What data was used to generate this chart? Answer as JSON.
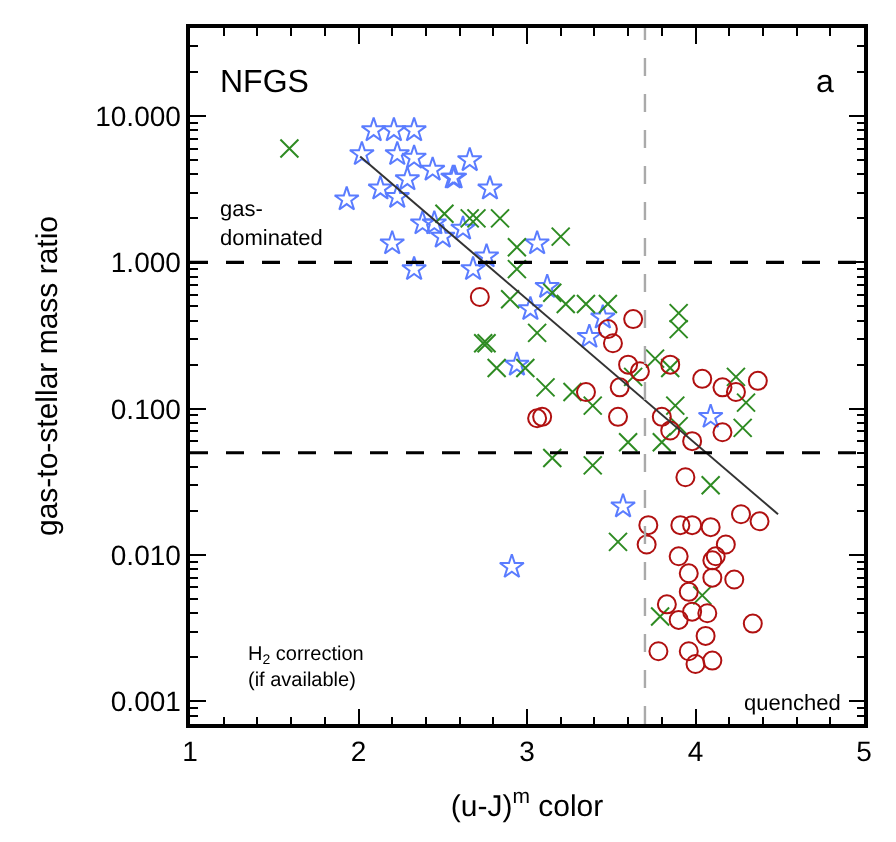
{
  "chart_data": {
    "type": "scatter",
    "xlabel": "(u-J)$^{m}$ color",
    "ylabel": "gas-to-stellar mass ratio",
    "xlim": [
      1,
      5
    ],
    "xticks": [
      1,
      2,
      3,
      4,
      5
    ],
    "ylim": [
      0.0007,
      40
    ],
    "log": "y",
    "yticks": [
      {
        "value": 0.001,
        "label": "0.001"
      },
      {
        "value": 0.01,
        "label": "0.010"
      },
      {
        "value": 0.1,
        "label": "0.100"
      },
      {
        "value": 1,
        "label": "1.000"
      },
      {
        "value": 10,
        "label": "10.000"
      }
    ],
    "series": [
      {
        "color": "#5a7cff",
        "marker": "star",
        "x": [
          2.09,
          2.21,
          2.33,
          2.02,
          2.23,
          2.33,
          1.93,
          2.13,
          2.23,
          2.44,
          2.56,
          2.66,
          2.29,
          2.38,
          2.45,
          2.62,
          2.2,
          2.33,
          2.68,
          2.5,
          2.57,
          2.78,
          2.76,
          3.06,
          3.12,
          3.02,
          3.37,
          2.94,
          3.45,
          4.09,
          3.57,
          2.91
        ],
        "values": [
          8.0,
          8.0,
          8.0,
          5.5,
          5.5,
          5.2,
          2.7,
          3.2,
          2.8,
          4.3,
          3.8,
          5.0,
          3.7,
          1.85,
          1.85,
          1.7,
          1.35,
          0.9,
          0.9,
          1.5,
          3.8,
          3.2,
          1.1,
          1.35,
          0.68,
          0.48,
          0.31,
          0.2,
          0.42,
          0.088,
          0.0215,
          0.0083
        ]
      },
      {
        "color": "#2e8b22",
        "marker": "cross",
        "x": [
          1.59,
          2.51,
          2.66,
          2.74,
          2.7,
          2.84,
          3.2,
          2.94,
          2.94,
          3.15,
          3.35,
          2.9,
          3.06,
          2.76,
          2.82,
          2.99,
          3.23,
          3.48,
          3.9,
          3.9,
          3.76,
          3.85,
          3.11,
          3.27,
          3.39,
          3.63,
          3.88,
          4.24,
          4.3,
          3.15,
          3.39,
          3.6,
          3.8,
          3.9,
          4.28,
          4.09,
          3.54,
          3.79,
          4.04
        ],
        "values": [
          6.0,
          2.15,
          2.0,
          0.28,
          2.0,
          2.0,
          1.5,
          1.27,
          0.9,
          0.62,
          0.52,
          0.56,
          0.33,
          0.28,
          0.19,
          0.19,
          0.52,
          0.52,
          0.45,
          0.35,
          0.22,
          0.19,
          0.14,
          0.13,
          0.105,
          0.165,
          0.105,
          0.165,
          0.11,
          0.046,
          0.041,
          0.059,
          0.059,
          0.076,
          0.074,
          0.03,
          0.0123,
          0.0038,
          0.0053
        ]
      },
      {
        "color": "#b01010",
        "marker": "circle",
        "x": [
          2.72,
          3.63,
          3.48,
          3.51,
          3.6,
          3.67,
          3.85,
          3.35,
          3.55,
          4.04,
          4.16,
          4.24,
          4.37,
          3.54,
          3.8,
          3.09,
          3.06,
          3.85,
          4.16,
          3.98,
          3.94,
          3.72,
          3.91,
          3.98,
          4.09,
          4.27,
          4.38,
          4.18,
          3.71,
          3.9,
          4.12,
          4.1,
          3.96,
          4.1,
          4.23,
          3.96,
          3.83,
          3.98,
          4.07,
          3.9,
          4.34,
          4.06,
          3.78,
          3.96,
          4.1,
          4.0
        ],
        "values": [
          0.58,
          0.41,
          0.35,
          0.28,
          0.2,
          0.18,
          0.2,
          0.13,
          0.14,
          0.16,
          0.14,
          0.13,
          0.155,
          0.088,
          0.088,
          0.088,
          0.086,
          0.071,
          0.069,
          0.06,
          0.034,
          0.016,
          0.016,
          0.016,
          0.0155,
          0.019,
          0.017,
          0.0118,
          0.0118,
          0.0098,
          0.0098,
          0.0092,
          0.0075,
          0.007,
          0.0068,
          0.0056,
          0.0046,
          0.0041,
          0.004,
          0.0036,
          0.0034,
          0.0028,
          0.0022,
          0.0022,
          0.0019,
          0.0018
        ]
      },
      {
        "type": "line",
        "color": "#333333",
        "marker": "none",
        "x": [
          2.01,
          4.49
        ],
        "values": [
          5.3,
          0.019
        ]
      }
    ],
    "ref_lines": [
      {
        "axis": "y",
        "value": 1,
        "color": "#000000",
        "line_style": "dashed"
      },
      {
        "axis": "y",
        "value": 0.05,
        "color": "#000000",
        "line_style": "dashed"
      },
      {
        "axis": "x",
        "value": 3.7,
        "color": "#aaaaaa",
        "line_style": "dashed"
      }
    ],
    "annotations": [
      "NFGS",
      "a",
      "gas-\ndominated",
      "H$_{2}$ correction\n(if available)",
      "quenched"
    ]
  }
}
